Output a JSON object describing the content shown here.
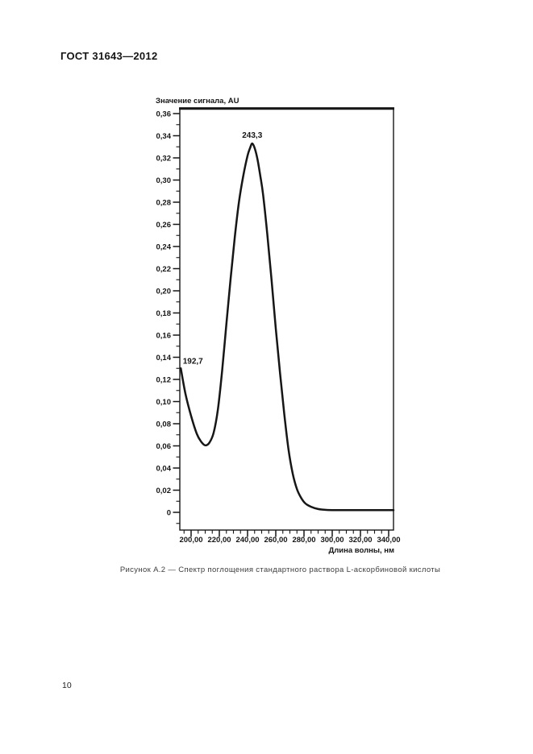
{
  "page": {
    "header": "ГОСТ 31643—2012",
    "caption": "Рисунок А.2 — Спектр поглощения стандартного раствора L-аскорбиновой кислоты",
    "page_number": "10"
  },
  "chart_data": {
    "type": "line",
    "title": "Значение сигнала, AU",
    "xlabel": "Длина волны, нм",
    "ylabel": "Значение сигнала, AU",
    "grid": false,
    "legend": "none",
    "line_color": "#161616",
    "x_axis": {
      "range": [
        192,
        345
      ],
      "major_ticks": [
        200,
        220,
        240,
        260,
        280,
        300,
        320,
        340
      ],
      "major_tick_labels": [
        "200,00",
        "220,00",
        "240,00",
        "260,00",
        "280,00",
        "300,00",
        "320,00",
        "340,00"
      ],
      "minor_step": 5
    },
    "y_axis": {
      "range": [
        -0.016,
        0.365
      ],
      "major_ticks": [
        0,
        0.02,
        0.04,
        0.06,
        0.08,
        0.1,
        0.12,
        0.14,
        0.16,
        0.18,
        0.2,
        0.22,
        0.24,
        0.26,
        0.28,
        0.3,
        0.32,
        0.34,
        0.36
      ],
      "major_tick_labels": [
        "0",
        "0,02",
        "0,04",
        "0,06",
        "0,08",
        "0,10",
        "0,12",
        "0,14",
        "0,16",
        "0,18",
        "0,20",
        "0,22",
        "0,24",
        "0,26",
        "0,28",
        "0,30",
        "0,32",
        "0,34",
        "0,36"
      ],
      "minor_step": 0.01
    },
    "annotations": [
      {
        "text": "243,3",
        "x": 243.3,
        "y": 0.333,
        "role": "peak-wavelength"
      },
      {
        "text": "192,7",
        "x": 192.7,
        "y": 0.13,
        "role": "start-wavelength"
      }
    ],
    "series": [
      {
        "name": "Спектр поглощения L-аскорбиновой кислоты",
        "points": [
          [
            192.7,
            0.13
          ],
          [
            196,
            0.107
          ],
          [
            200,
            0.087
          ],
          [
            204,
            0.071
          ],
          [
            207,
            0.064
          ],
          [
            210,
            0.0605
          ],
          [
            213,
            0.063
          ],
          [
            216,
            0.072
          ],
          [
            219,
            0.093
          ],
          [
            222,
            0.128
          ],
          [
            225,
            0.17
          ],
          [
            228,
            0.211
          ],
          [
            231,
            0.249
          ],
          [
            234,
            0.281
          ],
          [
            237,
            0.304
          ],
          [
            240,
            0.322
          ],
          [
            241.8,
            0.329
          ],
          [
            243.3,
            0.333
          ],
          [
            245,
            0.329
          ],
          [
            247,
            0.319
          ],
          [
            249,
            0.304
          ],
          [
            251,
            0.287
          ],
          [
            254,
            0.251
          ],
          [
            257,
            0.21
          ],
          [
            260,
            0.166
          ],
          [
            263,
            0.126
          ],
          [
            266,
            0.089
          ],
          [
            269,
            0.057
          ],
          [
            272,
            0.035
          ],
          [
            275,
            0.021
          ],
          [
            278,
            0.013
          ],
          [
            281,
            0.008
          ],
          [
            285,
            0.005
          ],
          [
            290,
            0.003
          ],
          [
            296,
            0.0022
          ],
          [
            303,
            0.002
          ],
          [
            315,
            0.002
          ],
          [
            330,
            0.002
          ],
          [
            345,
            0.002
          ]
        ]
      }
    ]
  }
}
